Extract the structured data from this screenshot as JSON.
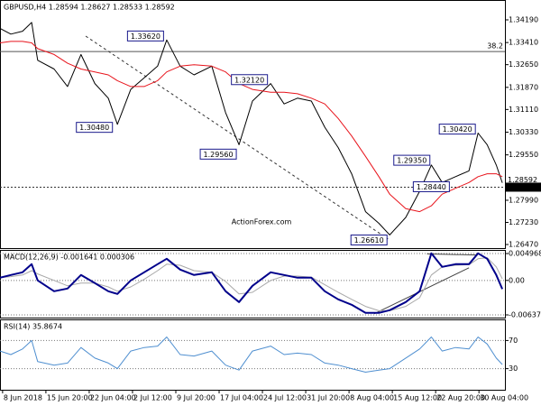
{
  "chart_data": [
    {
      "type": "line",
      "title": "GBPUSD,H4  1.28594 1.28627 1.28533 1.28592",
      "watermark": "ActionForex.com",
      "xlim": [
        -0.06,
        11.6
      ],
      "ylim": [
        1.26346,
        1.34872
      ],
      "grid": false,
      "yticks": [
        {
          "value": 1.3419,
          "label": "1.34190"
        },
        {
          "value": 1.3341,
          "label": "1.33410"
        },
        {
          "value": 1.3265,
          "label": "1.32650"
        },
        {
          "value": 1.3187,
          "label": "1.31870"
        },
        {
          "value": 1.3111,
          "label": "1.31110"
        },
        {
          "value": 1.3033,
          "label": "1.30330"
        },
        {
          "value": 1.2955,
          "label": "1.29550"
        },
        {
          "value": 1.2799,
          "label": "1.27990"
        },
        {
          "value": 1.2723,
          "label": "1.27230"
        },
        {
          "value": 1.2647,
          "label": "1.26470"
        }
      ],
      "x": [
        -0.06,
        0.19,
        0.46,
        0.67,
        0.81,
        1.19,
        1.5,
        1.81,
        2.13,
        2.44,
        2.65,
        2.96,
        3.27,
        3.58,
        3.79,
        4.1,
        4.42,
        4.83,
        5.15,
        5.46,
        5.77,
        6.19,
        6.5,
        6.81,
        7.13,
        7.44,
        7.75,
        8.06,
        8.38,
        8.69,
        8.94,
        9.31,
        9.63,
        9.9,
        10.15,
        10.46,
        10.77,
        10.98,
        11.19,
        11.4,
        11.54
      ],
      "series": [
        {
          "color": "#000000",
          "width": 1,
          "values": [
            1.339,
            1.337,
            1.338,
            1.341,
            1.328,
            1.325,
            1.319,
            1.33,
            1.32,
            1.315,
            1.306,
            1.318,
            1.322,
            1.326,
            1.335,
            1.326,
            1.323,
            1.326,
            1.31,
            1.299,
            1.314,
            1.32,
            1.313,
            1.315,
            1.314,
            1.305,
            1.298,
            1.289,
            1.276,
            1.272,
            1.268,
            1.274,
            1.283,
            1.292,
            1.286,
            1.288,
            1.29,
            1.303,
            1.299,
            1.292,
            1.2859
          ]
        },
        {
          "color": "#e8141c",
          "width": 1,
          "values": [
            1.334,
            1.3345,
            1.3345,
            1.334,
            1.332,
            1.33,
            1.327,
            1.325,
            1.324,
            1.323,
            1.321,
            1.319,
            1.319,
            1.321,
            1.324,
            1.326,
            1.3265,
            1.326,
            1.324,
            1.32,
            1.318,
            1.317,
            1.317,
            1.3165,
            1.315,
            1.313,
            1.308,
            1.302,
            1.295,
            1.288,
            1.282,
            1.277,
            1.276,
            1.278,
            1.282,
            1.284,
            1.286,
            1.288,
            1.289,
            1.289,
            1.288
          ]
        }
      ],
      "annotations": [
        {
          "x": 3.8,
          "value": 1.3362,
          "label": "1.33620"
        },
        {
          "x": 2.62,
          "value": 1.3048,
          "label": "1.30480"
        },
        {
          "x": 6.2,
          "value": 1.3212,
          "label": "1.32120"
        },
        {
          "x": 5.48,
          "value": 1.2956,
          "label": "1.29560"
        },
        {
          "x": 9.95,
          "value": 1.2935,
          "label": "1.29350"
        },
        {
          "x": 11.0,
          "value": 1.3042,
          "label": "1.30420"
        },
        {
          "x": 8.96,
          "value": 1.2661,
          "label": "1.26610"
        },
        {
          "x": 10.4,
          "value": 1.2844,
          "label": "1.28440"
        }
      ],
      "trendlines": [
        {
          "x": [
            1.92,
            8.9
          ],
          "values": [
            1.3363,
            1.2666
          ]
        }
      ],
      "levels": [
        {
          "value": 1.331,
          "label": "38.2"
        }
      ],
      "bid": {
        "value": 1.28592,
        "label": "1.28592"
      },
      "price_line": {
        "value": 1.2844,
        "label": "1.28440"
      }
    },
    {
      "type": "line",
      "title": "MACD(12,26,9) -0.001641 0.000306",
      "xlim": [
        -0.06,
        11.6
      ],
      "ylim": [
        -0.00687,
        0.00564
      ],
      "grid": "dotted",
      "yticks": [
        0.004968,
        {
          "value": 0,
          "label": "0.00"
        },
        -0.006372
      ],
      "x": [
        -0.06,
        0.19,
        0.46,
        0.67,
        0.81,
        1.19,
        1.5,
        1.81,
        2.13,
        2.44,
        2.65,
        2.96,
        3.27,
        3.58,
        3.79,
        4.1,
        4.42,
        4.83,
        5.15,
        5.46,
        5.77,
        6.19,
        6.5,
        6.81,
        7.13,
        7.44,
        7.75,
        8.06,
        8.38,
        8.69,
        8.94,
        9.31,
        9.63,
        9.9,
        10.15,
        10.46,
        10.77,
        10.98,
        11.19,
        11.4,
        11.54
      ],
      "series": [
        {
          "color": "#a8a8a8",
          "width": 1,
          "values": [
            0.0005,
            0.0007,
            0.001,
            0.0018,
            0.0012,
            0,
            -0.001,
            -0.0005,
            -0.0005,
            -0.0012,
            -0.002,
            -0.0012,
            0.0002,
            0.0018,
            0.003,
            0.0028,
            0.0018,
            0.0015,
            -0.0002,
            -0.0025,
            -0.0022,
            0,
            0.0008,
            0.0008,
            0.0006,
            -0.0008,
            -0.0022,
            -0.0035,
            -0.0048,
            -0.0056,
            -0.0056,
            -0.0048,
            -0.0032,
            0.001,
            0.0025,
            0.0028,
            0.0029,
            0.004,
            0.0042,
            0.0025,
            0.0003
          ]
        },
        {
          "color": "#00008b",
          "width": 2,
          "values": [
            0.0005,
            0.001,
            0.0015,
            0.003,
            0,
            -0.002,
            -0.0015,
            0.001,
            -0.0005,
            -0.002,
            -0.0025,
            0,
            0.0015,
            0.003,
            0.004,
            0.002,
            0.001,
            0.0015,
            -0.002,
            -0.004,
            -0.001,
            0.0015,
            0.001,
            0.0005,
            0.0005,
            -0.002,
            -0.0035,
            -0.0045,
            -0.006,
            -0.006,
            -0.0055,
            -0.004,
            -0.002,
            0.005,
            0.0025,
            0.003,
            0.003,
            0.005,
            0.004,
            0.001,
            -0.0016
          ]
        }
      ],
      "trendlines": [
        {
          "x": [
            8.58,
            10.77
          ],
          "values": [
            -0.00617,
            0.00234
          ]
        },
        {
          "x": [
            9.8,
            10.95
          ],
          "values": [
            0.0049,
            0.0047
          ]
        }
      ]
    },
    {
      "type": "line",
      "title": "RSI(14) 35.8674",
      "xlim": [
        -0.06,
        11.6
      ],
      "ylim": [
        0,
        100
      ],
      "grid": "dotted",
      "yticks": [
        70,
        30
      ],
      "x": [
        -0.06,
        0.19,
        0.46,
        0.67,
        0.81,
        1.19,
        1.5,
        1.81,
        2.13,
        2.44,
        2.65,
        2.96,
        3.27,
        3.58,
        3.79,
        4.1,
        4.42,
        4.83,
        5.15,
        5.46,
        5.77,
        6.19,
        6.5,
        6.81,
        7.13,
        7.44,
        7.75,
        8.06,
        8.38,
        8.69,
        8.94,
        9.31,
        9.63,
        9.9,
        10.15,
        10.46,
        10.77,
        10.98,
        11.19,
        11.4,
        11.54
      ],
      "series": [
        {
          "color": "#4f8fd0",
          "width": 1,
          "values": [
            55,
            50,
            58,
            70,
            40,
            35,
            38,
            60,
            45,
            38,
            30,
            55,
            60,
            62,
            75,
            50,
            48,
            55,
            35,
            28,
            55,
            62,
            50,
            52,
            50,
            38,
            35,
            30,
            25,
            28,
            30,
            45,
            58,
            75,
            55,
            60,
            58,
            75,
            65,
            45,
            35.9
          ]
        }
      ],
      "xticks": [
        {
          "value": 0,
          "label": "8 Jun 2018"
        },
        {
          "value": 1,
          "label": "15 Jun 20:00"
        },
        {
          "value": 2,
          "label": "22 Jun 04:00"
        },
        {
          "value": 3,
          "label": "2 Jul 12:00"
        },
        {
          "value": 4,
          "label": "9 Jul 20:00"
        },
        {
          "value": 5,
          "label": "17 Jul 04:00"
        },
        {
          "value": 6,
          "label": "24 Jul 12:00"
        },
        {
          "value": 7,
          "label": "31 Jul 20:00"
        },
        {
          "value": 8,
          "label": "8 Aug 04:00"
        },
        {
          "value": 9,
          "label": "15 Aug 12:00"
        },
        {
          "value": 10,
          "label": "22 Aug 20:00"
        },
        {
          "value": 11,
          "label": "30 Aug 04:00"
        }
      ]
    }
  ]
}
